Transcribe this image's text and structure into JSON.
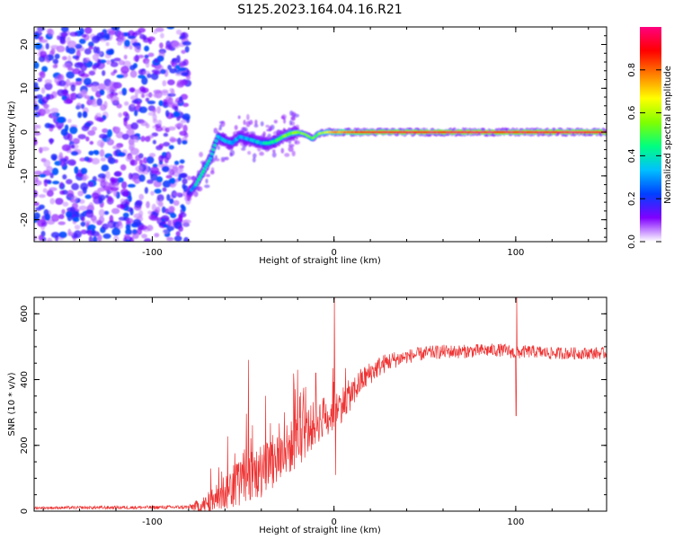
{
  "title": "S125.2023.164.04.16.R21",
  "chart_data": [
    {
      "type": "heatmap",
      "name": "spectrogram",
      "xlabel": "Height of straight line (km)",
      "ylabel": "Frequency (Hz)",
      "xlim": [
        -165,
        150
      ],
      "ylim": [
        -25,
        24
      ],
      "xticks": [
        -100,
        0,
        100
      ],
      "yticks": [
        -20,
        -10,
        0,
        10,
        20
      ],
      "noise_region_x": [
        -165,
        -80
      ],
      "noise_amplitude_range": [
        0.05,
        0.25
      ],
      "track": {
        "x": [
          -80,
          -76,
          -72,
          -68,
          -64,
          -60,
          -56,
          -52,
          -48,
          -44,
          -40,
          -36,
          -32,
          -28,
          -24,
          -20,
          -16,
          -12,
          -8,
          -4,
          0,
          20,
          50,
          100,
          150
        ],
        "y": [
          -14,
          -12,
          -9,
          -6,
          -1,
          -2,
          -2.5,
          -1,
          -1.5,
          -2,
          -2.5,
          -2.5,
          -2,
          -1,
          -0.3,
          0,
          -0.5,
          -1.5,
          -0.3,
          0,
          0,
          0,
          0,
          0,
          0
        ],
        "amplitude": [
          0.2,
          0.35,
          0.4,
          0.4,
          0.35,
          0.3,
          0.35,
          0.3,
          0.3,
          0.35,
          0.35,
          0.4,
          0.45,
          0.5,
          0.55,
          0.55,
          0.5,
          0.5,
          0.55,
          0.65,
          0.75,
          0.9,
          0.95,
          0.95,
          0.95
        ]
      },
      "colorbar": {
        "label": "Normalized spectral amplitude",
        "range": [
          0.0,
          1.0
        ],
        "ticks": [
          "0.0",
          "0.2",
          "0.4",
          "0.6",
          "0.8"
        ],
        "colors": [
          "#ffffff",
          "#8000ff",
          "#0040ff",
          "#00c0ff",
          "#00ff80",
          "#80ff00",
          "#ffff00",
          "#ff8000",
          "#ff0000",
          "#ff0080"
        ]
      }
    },
    {
      "type": "line",
      "name": "snr",
      "xlabel": "Height of straight line (km)",
      "ylabel": "SNR (10 * v/v)",
      "xlim": [
        -165,
        150
      ],
      "ylim": [
        0,
        650
      ],
      "xticks": [
        -100,
        0,
        100
      ],
      "yticks": [
        0,
        200,
        400,
        600
      ],
      "color": "#ee3333",
      "envelope": {
        "x": [
          -165,
          -80,
          -70,
          -65,
          -60,
          -55,
          -50,
          -45,
          -40,
          -35,
          -30,
          -25,
          -20,
          -15,
          -10,
          -5,
          0,
          5,
          10,
          15,
          20,
          25,
          30,
          40,
          50,
          60,
          70,
          80,
          90,
          95,
          100,
          105,
          110,
          120,
          130,
          140,
          150
        ],
        "y": [
          10,
          12,
          20,
          40,
          60,
          80,
          95,
          110,
          125,
          140,
          160,
          190,
          210,
          240,
          270,
          290,
          300,
          330,
          360,
          395,
          420,
          440,
          455,
          470,
          480,
          485,
          485,
          488,
          490,
          488,
          480,
          485,
          485,
          480,
          480,
          480,
          480
        ]
      },
      "noise_amplitude": {
        "x": [
          -165,
          -80,
          -60,
          -40,
          -20,
          0,
          20,
          40,
          150
        ],
        "y": [
          4,
          6,
          60,
          90,
          80,
          60,
          35,
          22,
          18
        ]
      },
      "spikes": [
        {
          "x": 0.2,
          "y": 650
        },
        {
          "x": 0.8,
          "y": 110
        },
        {
          "x": 100.5,
          "y": 650
        },
        {
          "x": 100.2,
          "y": 290
        },
        {
          "x": -47,
          "y": 460
        },
        {
          "x": -20,
          "y": 430
        },
        {
          "x": -10,
          "y": 420
        }
      ]
    }
  ]
}
